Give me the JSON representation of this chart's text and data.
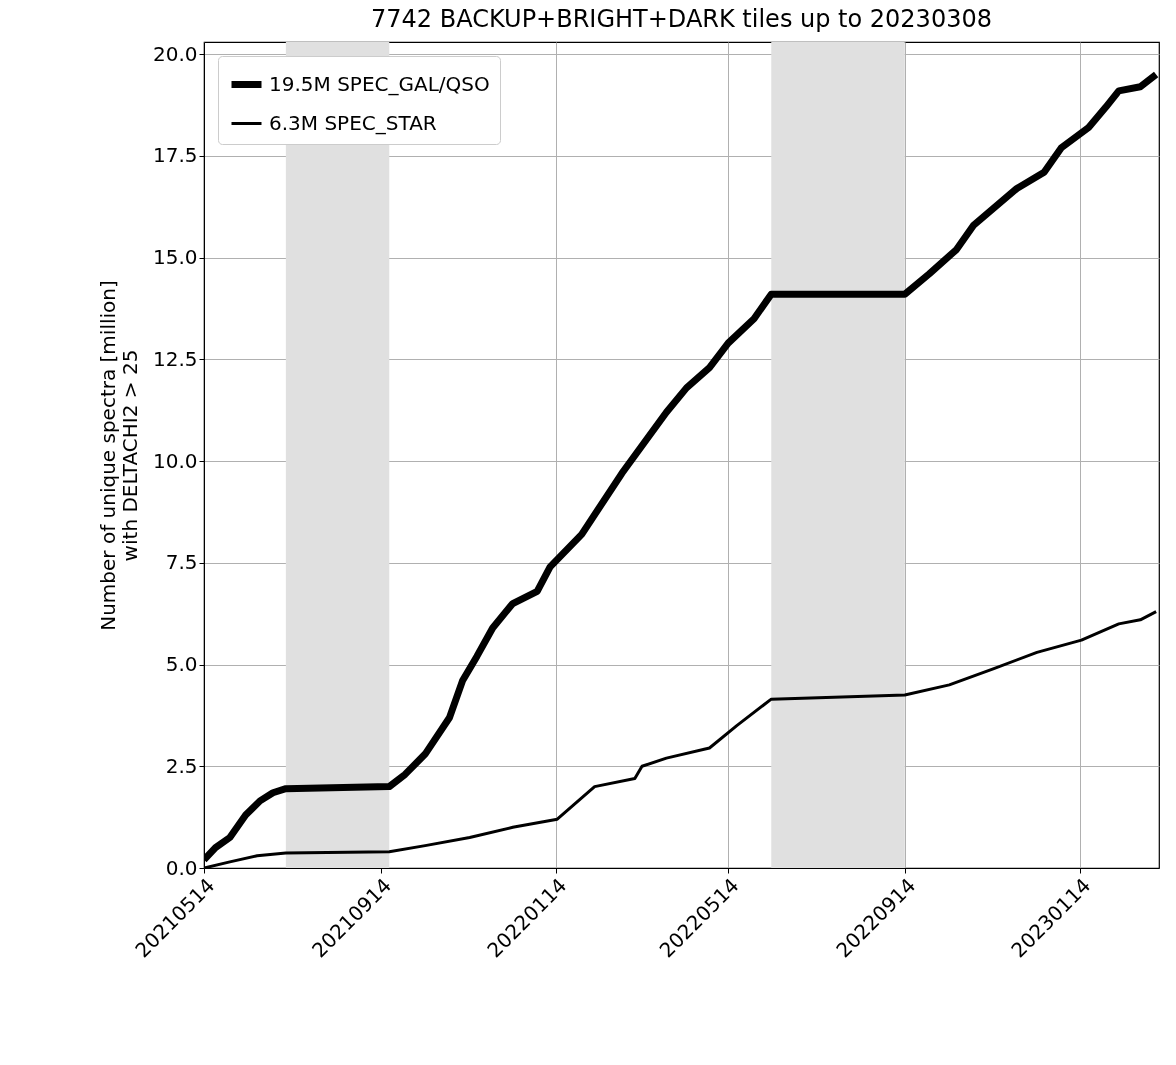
{
  "chart_data": {
    "type": "line",
    "title": "7742 BACKUP+BRIGHT+DARK tiles up to 20230308",
    "ylabel": "Number of unique spectra [million]\nwith DELTACHI2 > 25",
    "xlim": [
      "2021-05-14",
      "2023-03-10"
    ],
    "xticks": [
      {
        "value": "2021-05-14",
        "label": "20210514"
      },
      {
        "value": "2021-09-14",
        "label": "20210914"
      },
      {
        "value": "2022-01-14",
        "label": "20220114"
      },
      {
        "value": "2022-05-14",
        "label": "20220514"
      },
      {
        "value": "2022-09-14",
        "label": "20220914"
      },
      {
        "value": "2023-01-14",
        "label": "20230114"
      }
    ],
    "ylim": [
      0,
      20.3
    ],
    "yticks": [
      {
        "value": 0,
        "label": "0.0"
      },
      {
        "value": 2.5,
        "label": "2.5"
      },
      {
        "value": 5,
        "label": "5.0"
      },
      {
        "value": 7.5,
        "label": "7.5"
      },
      {
        "value": 10,
        "label": "10.0"
      },
      {
        "value": 12.5,
        "label": "12.5"
      },
      {
        "value": 15,
        "label": "15.0"
      },
      {
        "value": 17.5,
        "label": "17.5"
      },
      {
        "value": 20,
        "label": "20.0"
      }
    ],
    "grid": true,
    "legend": "top left",
    "line_style": "solid",
    "bands": [
      {
        "axis": "x",
        "from": "2021-07-10",
        "to": "2021-09-20",
        "color": "#e0e0e0"
      },
      {
        "axis": "x",
        "from": "2022-06-13",
        "to": "2022-09-14",
        "color": "#e0e0e0"
      }
    ],
    "series": [
      {
        "name": "19.5M SPEC_GAL/QSO",
        "color": "#000000",
        "x": [
          "2021-05-14",
          "2021-05-22",
          "2021-06-01",
          "2021-06-12",
          "2021-06-22",
          "2021-07-01",
          "2021-07-10",
          "2021-09-20",
          "2021-10-01",
          "2021-10-15",
          "2021-11-01",
          "2021-11-10",
          "2021-11-20",
          "2021-12-01",
          "2021-12-15",
          "2022-01-01",
          "2022-01-10",
          "2022-02-01",
          "2022-03-01",
          "2022-04-01",
          "2022-04-15",
          "2022-05-01",
          "2022-05-14",
          "2022-06-01",
          "2022-06-13",
          "2022-09-14",
          "2022-10-01",
          "2022-10-20",
          "2022-11-01",
          "2022-12-01",
          "2022-12-20",
          "2023-01-01",
          "2023-01-20",
          "2023-02-01",
          "2023-02-10",
          "2023-02-25",
          "2023-03-08"
        ],
        "values": [
          0.2,
          0.5,
          0.75,
          1.3,
          1.65,
          1.85,
          1.95,
          2.0,
          2.3,
          2.8,
          3.7,
          4.6,
          5.2,
          5.9,
          6.5,
          6.8,
          7.4,
          8.2,
          9.7,
          11.2,
          11.8,
          12.3,
          12.9,
          13.5,
          14.1,
          14.1,
          14.6,
          15.2,
          15.8,
          16.7,
          17.1,
          17.7,
          18.2,
          18.7,
          19.1,
          19.2,
          19.5
        ]
      },
      {
        "name": "6.3M SPEC_STAR",
        "color": "#000000",
        "x": [
          "2021-05-14",
          "2021-06-01",
          "2021-06-20",
          "2021-07-10",
          "2021-09-20",
          "2021-10-15",
          "2021-11-15",
          "2021-12-15",
          "2022-01-15",
          "2022-02-10",
          "2022-03-10",
          "2022-03-15",
          "2022-04-01",
          "2022-05-01",
          "2022-05-20",
          "2022-06-13",
          "2022-09-14",
          "2022-10-15",
          "2022-11-15",
          "2022-12-15",
          "2023-01-15",
          "2023-02-10",
          "2023-02-25",
          "2023-03-08"
        ],
        "values": [
          0,
          0.15,
          0.3,
          0.37,
          0.4,
          0.55,
          0.75,
          1.0,
          1.2,
          2.0,
          2.2,
          2.5,
          2.7,
          2.95,
          3.5,
          4.15,
          4.25,
          4.5,
          4.9,
          5.3,
          5.6,
          6.0,
          6.1,
          6.3
        ]
      }
    ]
  }
}
